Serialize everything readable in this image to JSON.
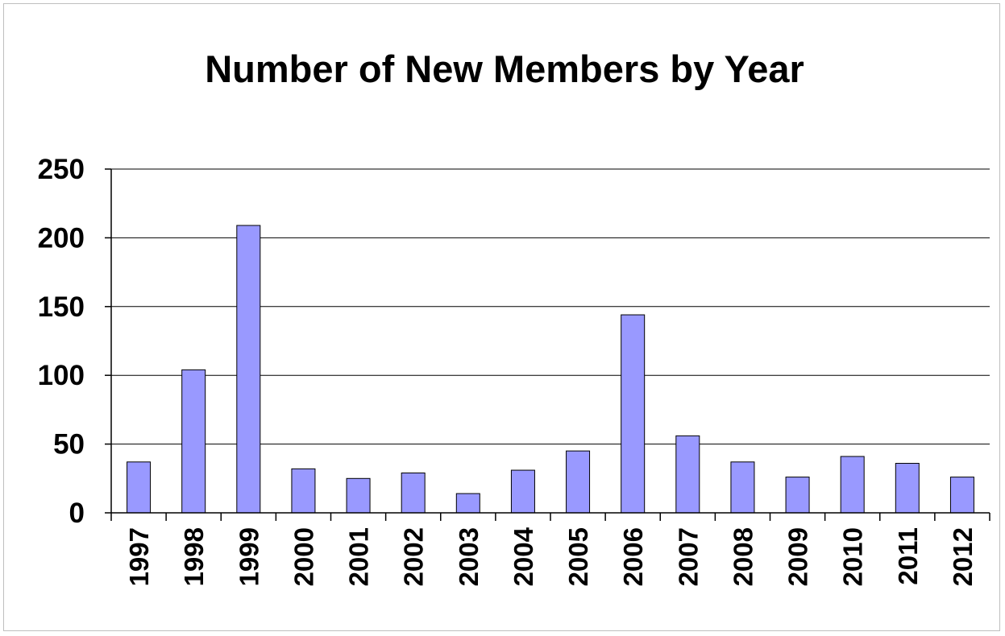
{
  "chart_data": {
    "type": "bar",
    "title": "Number of New Members by Year",
    "xlabel": "",
    "ylabel": "",
    "categories": [
      "1997",
      "1998",
      "1999",
      "2000",
      "2001",
      "2002",
      "2003",
      "2004",
      "2005",
      "2006",
      "2007",
      "2008",
      "2009",
      "2010",
      "2011",
      "2012"
    ],
    "values": [
      37,
      104,
      209,
      32,
      25,
      29,
      14,
      31,
      45,
      144,
      56,
      37,
      26,
      41,
      36,
      26
    ],
    "ylim": [
      0,
      250
    ],
    "yticks": [
      "0",
      "50",
      "100",
      "150",
      "200",
      "250"
    ],
    "grid": true,
    "legend": "none",
    "bar_color": "#9999ff",
    "bar_edge_color": "#000000"
  }
}
